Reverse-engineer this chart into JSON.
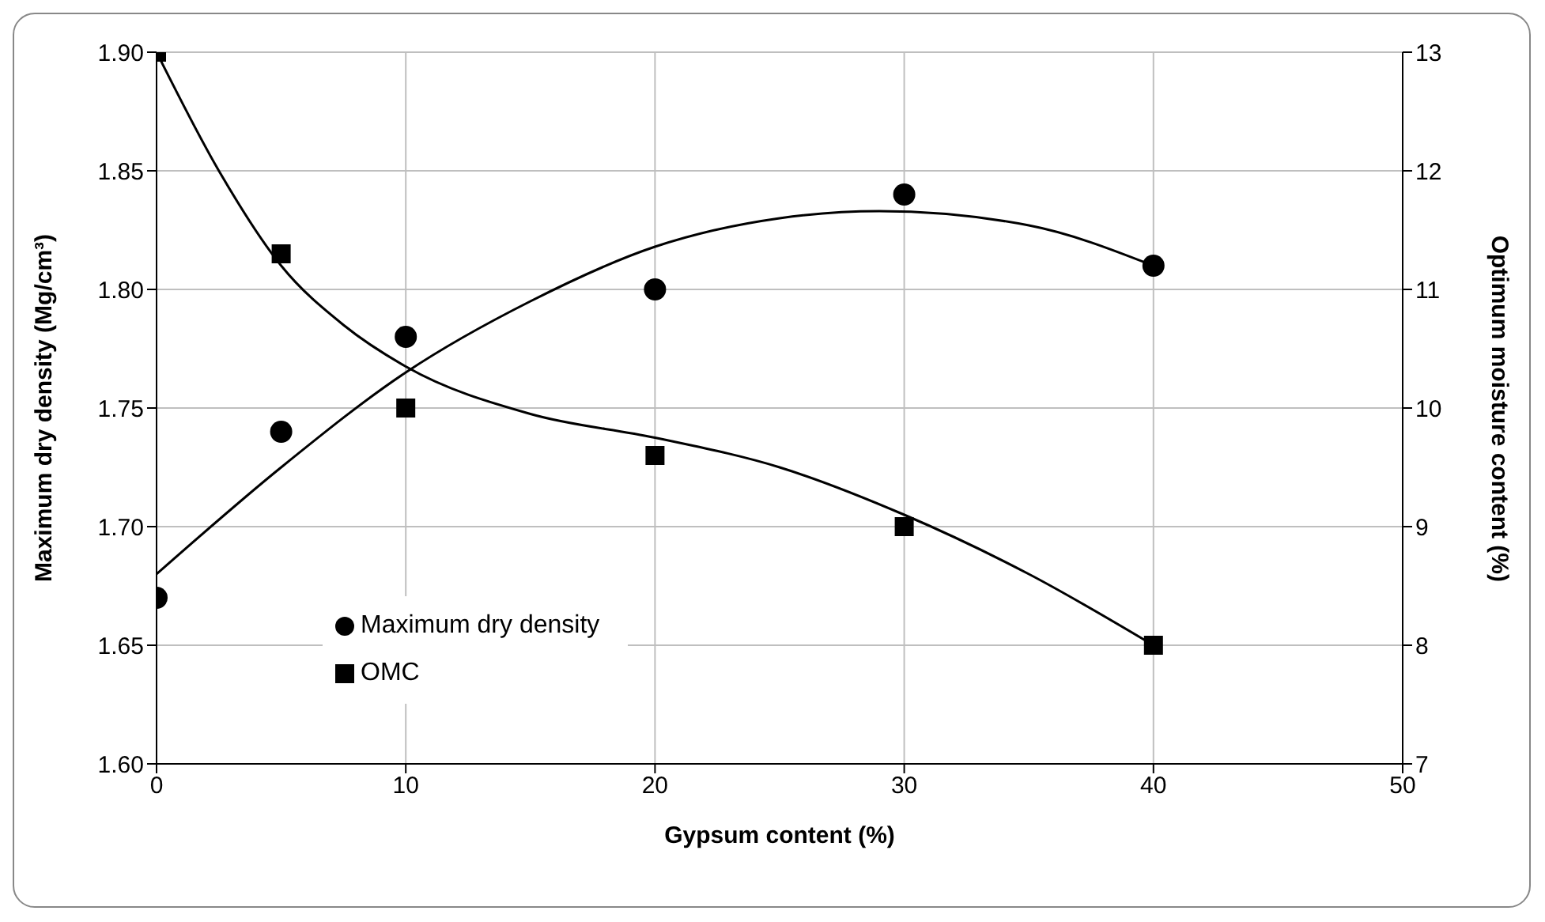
{
  "chart_data": {
    "type": "scatter",
    "xlabel": "Gypsum content (%)",
    "ylabel": "Maximum dry density (Mg/cm³)",
    "y2label": "Optimum moisture content (%)",
    "xlim": [
      0,
      50
    ],
    "xticks": [
      0,
      10,
      20,
      30,
      40,
      50
    ],
    "ylim": [
      1.6,
      1.9
    ],
    "yticks": [
      {
        "value": 1.6,
        "label": "1.60"
      },
      {
        "value": 1.65,
        "label": "1.65"
      },
      {
        "value": 1.7,
        "label": "1.70"
      },
      {
        "value": 1.75,
        "label": "1.75"
      },
      {
        "value": 1.8,
        "label": "1.80"
      },
      {
        "value": 1.85,
        "label": "1.85"
      },
      {
        "value": 1.9,
        "label": "1.90"
      }
    ],
    "y2lim": [
      7,
      13
    ],
    "y2ticks": [
      7,
      8,
      9,
      10,
      11,
      12,
      13
    ],
    "grid": true,
    "legend": "bottom left",
    "series": [
      {
        "name": "Maximum dry density",
        "marker": "circle",
        "color": "#000000",
        "x": [
          0,
          5,
          10,
          20,
          30,
          40
        ],
        "values": [
          1.67,
          1.74,
          1.78,
          1.8,
          1.84,
          1.81
        ]
      },
      {
        "name": "OMC",
        "marker": "square",
        "axis": "y2",
        "color": "#000000",
        "x": [
          0,
          5,
          10,
          20,
          30,
          40
        ],
        "values": [
          13,
          11.3,
          10,
          9.6,
          9,
          8
        ]
      },
      {
        "type": "line",
        "marker": "none",
        "color": "#000000",
        "x": [
          0,
          5,
          10,
          15,
          20,
          25,
          29,
          35,
          40
        ],
        "values": [
          1.68,
          1.725,
          1.765,
          1.795,
          1.818,
          1.83,
          1.833,
          1.827,
          1.81
        ]
      },
      {
        "type": "line",
        "marker": "none",
        "axis": "y2",
        "color": "#000000",
        "x": [
          0,
          2.5,
          5,
          7.5,
          10,
          15,
          20,
          25,
          30,
          35,
          40
        ],
        "values": [
          13,
          12,
          11.2,
          10.7,
          10.35,
          9.95,
          9.75,
          9.5,
          9.1,
          8.6,
          8
        ]
      }
    ]
  }
}
